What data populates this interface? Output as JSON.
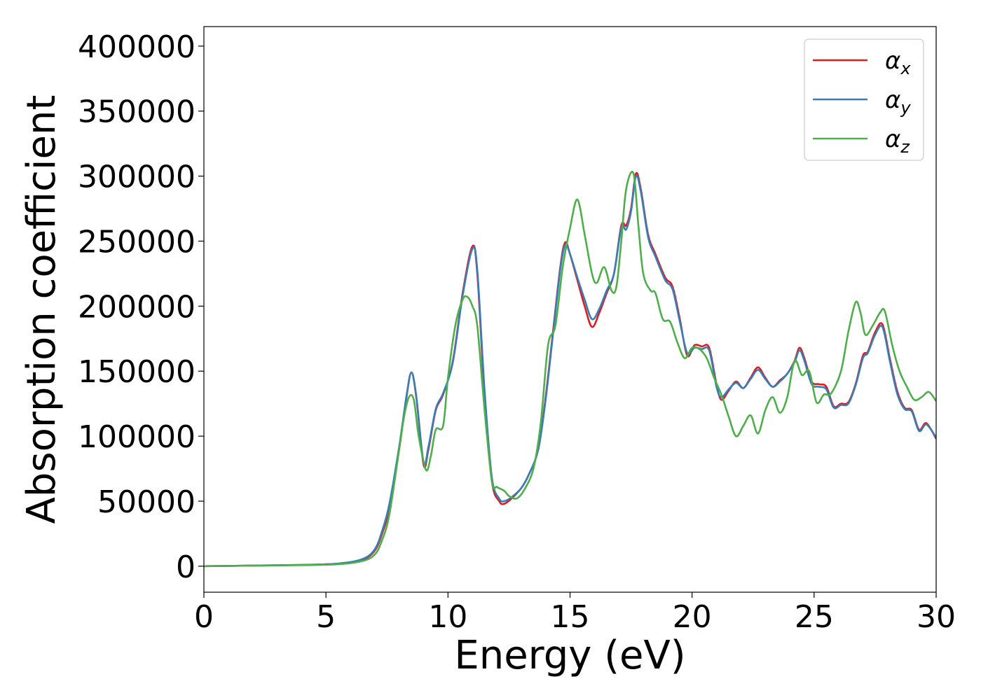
{
  "chart_data": {
    "type": "line",
    "title": "",
    "xlabel": "Energy (eV)",
    "ylabel": "Absorption coefficient",
    "xlim": [
      0,
      30
    ],
    "ylim": [
      -20000,
      415000
    ],
    "xticks": [
      0,
      5,
      10,
      15,
      20,
      25,
      30
    ],
    "xtick_labels": [
      "0",
      "5",
      "10",
      "15",
      "20",
      "25",
      "30"
    ],
    "yticks": [
      0,
      50000,
      100000,
      150000,
      200000,
      250000,
      300000,
      350000,
      400000
    ],
    "ytick_labels": [
      "0",
      "50000",
      "100000",
      "150000",
      "200000",
      "250000",
      "300000",
      "350000",
      "400000"
    ],
    "grid": false,
    "legend_position": "top-right",
    "series": [
      {
        "name": "α_x",
        "label_base": "α",
        "label_sub": "x",
        "color": "#e41a1c",
        "x": [
          0,
          2,
          4,
          5.5,
          6.5,
          7,
          7.3,
          7.6,
          8,
          8.3,
          8.5,
          8.7,
          9,
          9.2,
          9.5,
          9.8,
          10.2,
          10.6,
          11,
          11.2,
          11.5,
          11.8,
          12.1,
          12.3,
          12.6,
          13,
          13.3,
          13.7,
          14,
          14.3,
          14.6,
          14.8,
          15,
          15.3,
          15.6,
          15.9,
          16.2,
          16.5,
          16.8,
          17.1,
          17.3,
          17.5,
          17.7,
          17.9,
          18.2,
          18.5,
          18.9,
          19.2,
          19.5,
          19.8,
          20.1,
          20.4,
          20.7,
          21,
          21.2,
          21.5,
          21.8,
          22.1,
          22.4,
          22.7,
          23,
          23.3,
          23.6,
          23.9,
          24.2,
          24.4,
          24.6,
          24.9,
          25.2,
          25.5,
          25.8,
          26.1,
          26.4,
          26.7,
          27,
          27.2,
          27.5,
          27.8,
          28.1,
          28.4,
          28.7,
          29,
          29.3,
          29.6,
          30
        ],
        "y": [
          0,
          500,
          1000,
          2000,
          5000,
          12000,
          25000,
          45000,
          90000,
          130000,
          149000,
          130000,
          78000,
          90000,
          120000,
          132000,
          158000,
          210000,
          246000,
          225000,
          130000,
          65000,
          50000,
          48000,
          52000,
          60000,
          70000,
          90000,
          130000,
          180000,
          230000,
          249000,
          240000,
          220000,
          200000,
          184000,
          195000,
          210000,
          225000,
          262000,
          262000,
          275000,
          302000,
          290000,
          255000,
          240000,
          222000,
          215000,
          190000,
          162000,
          170000,
          169000,
          168000,
          140000,
          128000,
          135000,
          142000,
          137000,
          145000,
          153000,
          145000,
          138000,
          143000,
          148000,
          158000,
          168000,
          160000,
          142000,
          140000,
          138000,
          123000,
          125000,
          126000,
          140000,
          162000,
          165000,
          180000,
          186000,
          160000,
          135000,
          122000,
          120000,
          105000,
          110000,
          98000
        ]
      },
      {
        "name": "α_y",
        "label_base": "α",
        "label_sub": "y",
        "color": "#377eb8",
        "x": [
          0,
          2,
          4,
          5.5,
          6.5,
          7,
          7.3,
          7.6,
          8,
          8.3,
          8.5,
          8.7,
          9,
          9.2,
          9.5,
          9.8,
          10.2,
          10.6,
          11,
          11.2,
          11.5,
          11.8,
          12.1,
          12.3,
          12.6,
          13,
          13.3,
          13.7,
          14,
          14.3,
          14.6,
          14.8,
          15,
          15.3,
          15.6,
          15.9,
          16.2,
          16.5,
          16.8,
          17.1,
          17.3,
          17.5,
          17.7,
          17.9,
          18.2,
          18.5,
          18.9,
          19.2,
          19.5,
          19.8,
          20.1,
          20.4,
          20.7,
          21,
          21.2,
          21.5,
          21.8,
          22.1,
          22.4,
          22.7,
          23,
          23.3,
          23.6,
          23.9,
          24.2,
          24.4,
          24.6,
          24.9,
          25.2,
          25.5,
          25.8,
          26.1,
          26.4,
          26.7,
          27,
          27.2,
          27.5,
          27.8,
          28.1,
          28.4,
          28.7,
          29,
          29.3,
          29.6,
          30
        ],
        "y": [
          0,
          500,
          1000,
          2000,
          5500,
          13000,
          27000,
          48000,
          92000,
          131000,
          149000,
          131000,
          80000,
          92000,
          121000,
          133000,
          157000,
          208000,
          244000,
          228000,
          135000,
          68000,
          52000,
          50000,
          53000,
          60000,
          70000,
          90000,
          128000,
          178000,
          228000,
          247000,
          240000,
          222000,
          205000,
          190000,
          198000,
          212000,
          225000,
          260000,
          259000,
          273000,
          300000,
          288000,
          253000,
          238000,
          220000,
          213000,
          188000,
          164000,
          168000,
          167000,
          166000,
          138000,
          130000,
          136000,
          141000,
          137000,
          144000,
          151000,
          144000,
          138000,
          142000,
          148000,
          157000,
          166000,
          158000,
          140000,
          138000,
          136000,
          122000,
          124000,
          125000,
          139000,
          160000,
          164000,
          178000,
          184000,
          158000,
          133000,
          121000,
          119000,
          104000,
          109000,
          99000
        ]
      },
      {
        "name": "α_z",
        "label_base": "α",
        "label_sub": "z",
        "color": "#4daf4a",
        "x": [
          0,
          2,
          4,
          5.5,
          6.5,
          7,
          7.3,
          7.6,
          8,
          8.2,
          8.4,
          8.6,
          8.8,
          9.1,
          9.3,
          9.5,
          9.8,
          10,
          10.3,
          10.6,
          10.8,
          11,
          11.2,
          11.5,
          11.8,
          12,
          12.3,
          12.5,
          12.8,
          13.1,
          13.5,
          13.8,
          14.1,
          14.4,
          14.7,
          15,
          15.3,
          15.6,
          15.9,
          16.1,
          16.4,
          16.7,
          16.9,
          17.1,
          17.3,
          17.6,
          17.8,
          18,
          18.3,
          18.5,
          18.8,
          19.1,
          19.4,
          19.7,
          20,
          20.3,
          20.6,
          20.9,
          21.2,
          21.5,
          21.8,
          22.1,
          22.4,
          22.7,
          23,
          23.3,
          23.6,
          23.9,
          24.2,
          24.5,
          24.8,
          25.1,
          25.4,
          25.7,
          26.1,
          26.4,
          26.7,
          26.9,
          27.1,
          27.4,
          27.7,
          27.9,
          28.2,
          28.5,
          28.8,
          29.1,
          29.4,
          29.7,
          30
        ],
        "y": [
          0,
          400,
          800,
          1500,
          4000,
          9000,
          20000,
          40000,
          90000,
          115000,
          130000,
          128000,
          100000,
          74000,
          85000,
          105000,
          108000,
          145000,
          185000,
          205000,
          207000,
          200000,
          185000,
          120000,
          65000,
          61000,
          58000,
          54000,
          52000,
          58000,
          75000,
          110000,
          170000,
          185000,
          230000,
          260000,
          282000,
          255000,
          225000,
          218000,
          230000,
          212000,
          215000,
          250000,
          290000,
          302000,
          262000,
          225000,
          212000,
          210000,
          190000,
          188000,
          172000,
          160000,
          168000,
          167000,
          160000,
          145000,
          132000,
          115000,
          100000,
          108000,
          116000,
          102000,
          120000,
          130000,
          118000,
          130000,
          158000,
          147000,
          150000,
          126000,
          132000,
          133000,
          150000,
          180000,
          203000,
          195000,
          178000,
          185000,
          195000,
          196000,
          170000,
          150000,
          138000,
          128000,
          130000,
          134000,
          127000
        ]
      }
    ]
  }
}
